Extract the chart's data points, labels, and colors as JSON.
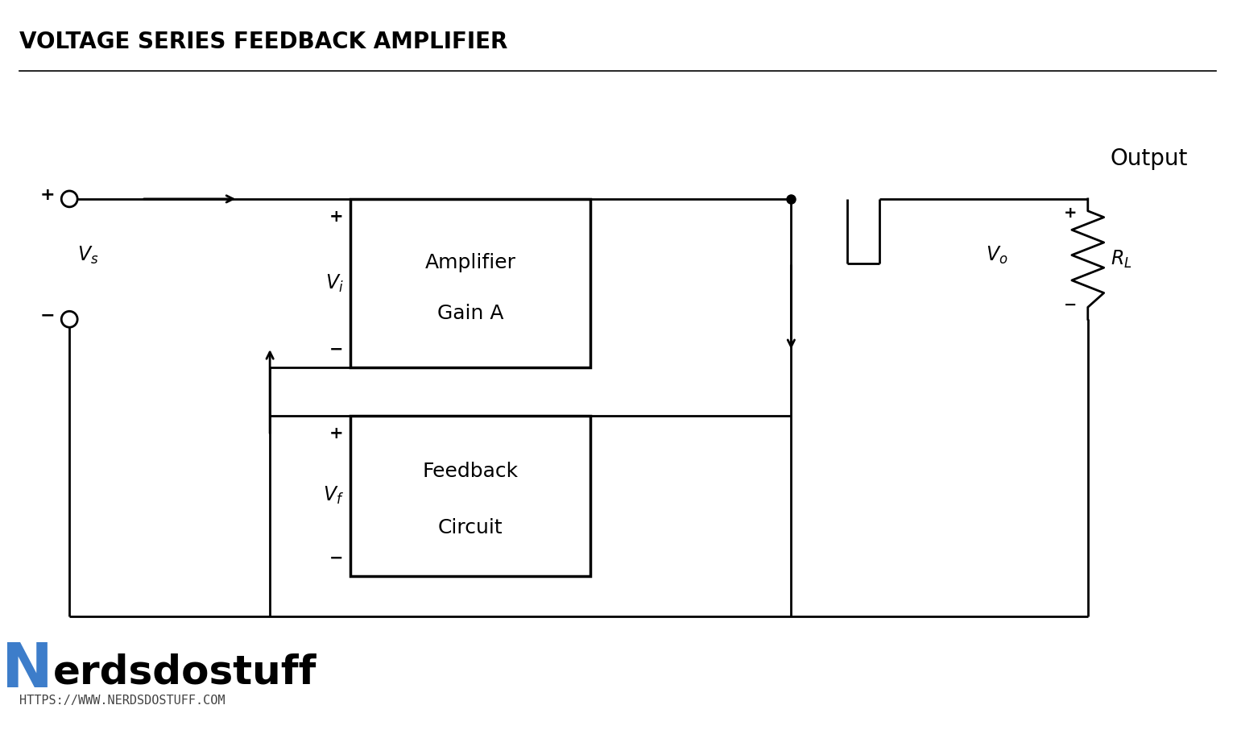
{
  "title": "VOLTAGE SERIES FEEDBACK AMPLIFIER",
  "title_color": "#000000",
  "title_fontsize": 20,
  "bg_color": "#ffffff",
  "line_color": "#000000",
  "line_width": 2.0,
  "logo_N_color": "#3d7dca",
  "logo_text": "erdsdostuff",
  "logo_url": "HTTPS://WWW.NERDSDOSTUFF.COM",
  "amp_label1": "Amplifier",
  "amp_label2": "Gain A",
  "fb_label1": "Feedback",
  "fb_label2": "Circuit",
  "output_label": "Output",
  "vs_label": "V_s",
  "vi_label": "V_i",
  "vf_label": "V_f",
  "vo_label": "V_o",
  "rl_label": "R_L"
}
